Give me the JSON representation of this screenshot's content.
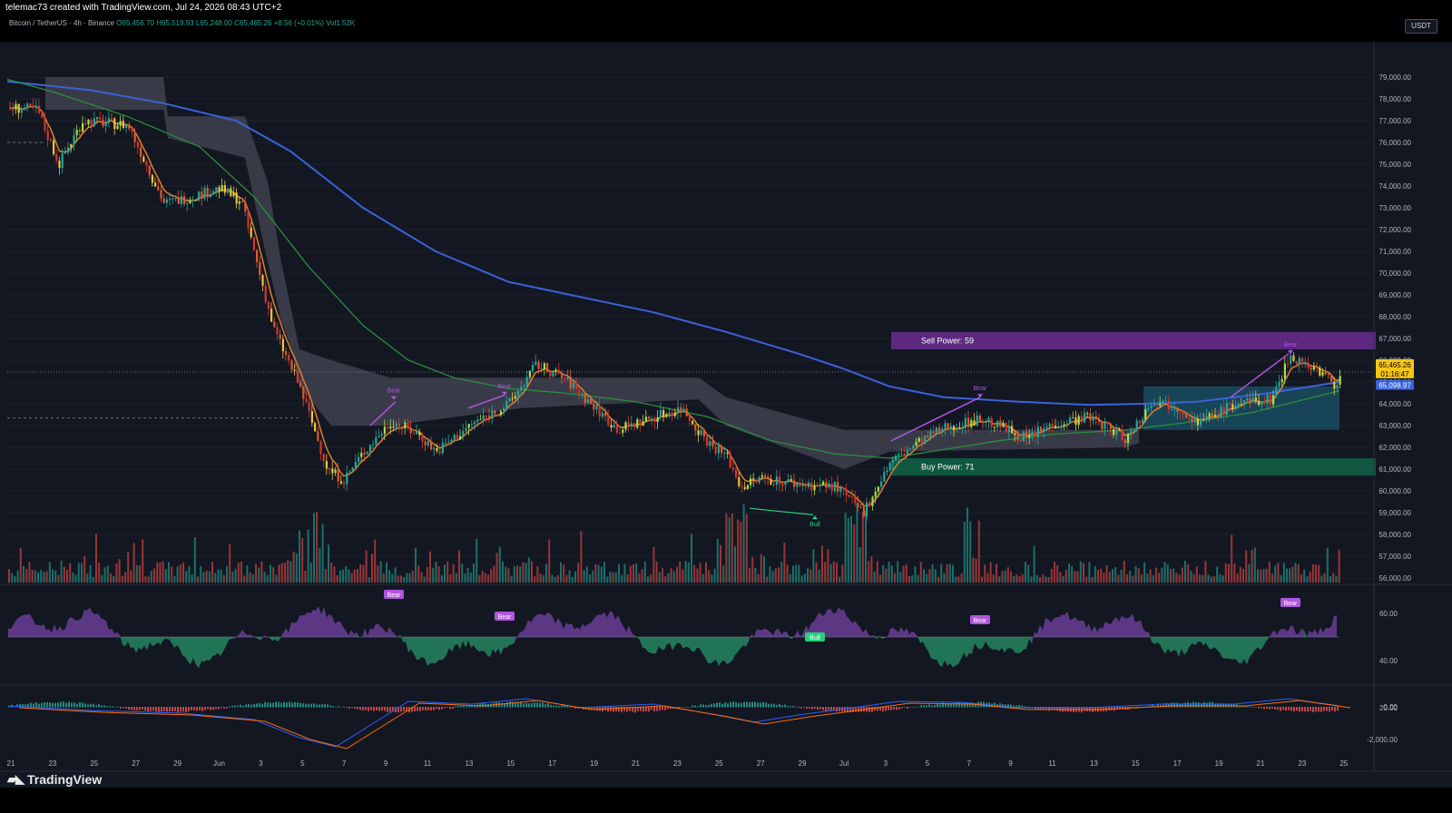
{
  "header": {
    "credit": "telemac73 created with TradingView.com, Jul 24, 2026 08:43 UTC+2"
  },
  "legend": {
    "symbol": "Bitcoin / TetherUS · 4h · Binance",
    "open": "O65,456.70",
    "high": "H65,519.93",
    "low": "L65,248.00",
    "close": "C65,465.26",
    "change": "+8.56 (+0.01%)",
    "volume": "Vol1.52K"
  },
  "currency": "USDT",
  "price_axis": {
    "labels": [
      "79,000.00",
      "78,000.00",
      "77,000.00",
      "76,000.00",
      "75,000.00",
      "74,000.00",
      "73,000.00",
      "72,000.00",
      "71,000.00",
      "70,000.00",
      "69,000.00",
      "68,000.00",
      "67,000.00",
      "66,000.00",
      "65,000.00",
      "64,000.00",
      "63,000.00",
      "62,000.00",
      "61,000.00",
      "60,000.00",
      "59,000.00",
      "58,000.00",
      "57,000.00",
      "56,000.00"
    ],
    "current_price": "65,465.26",
    "countdown": "01:16:47",
    "ma_price": "65,098.97",
    "range": [
      56000,
      79200
    ]
  },
  "date_axis": [
    "21",
    "23",
    "25",
    "27",
    "29",
    "Jun",
    "3",
    "5",
    "7",
    "9",
    "11",
    "13",
    "15",
    "17",
    "19",
    "21",
    "23",
    "25",
    "27",
    "29",
    "Jul",
    "3",
    "5",
    "7",
    "9",
    "11",
    "13",
    "15",
    "17",
    "19",
    "21",
    "23",
    "25"
  ],
  "zones": {
    "sell_power": "Sell Power: 59",
    "buy_power": "Buy Power: 71"
  },
  "signals": {
    "bear": "Bear",
    "bull": "Bull"
  },
  "osc_axis": [
    "60.00",
    "40.00",
    "20.00"
  ],
  "macd_axis": [
    "0.00",
    "-2,000.00"
  ],
  "brand": "TradingView",
  "colors": {
    "bg": "#131722",
    "up": "#26a69a",
    "down": "#ef5350",
    "bear": "#b254e0",
    "bull": "#26d07c",
    "sma200": "#3b62d9",
    "ema": "#e07d2f",
    "ma_green": "#2e8b3e",
    "cloud": "#575a66"
  }
}
